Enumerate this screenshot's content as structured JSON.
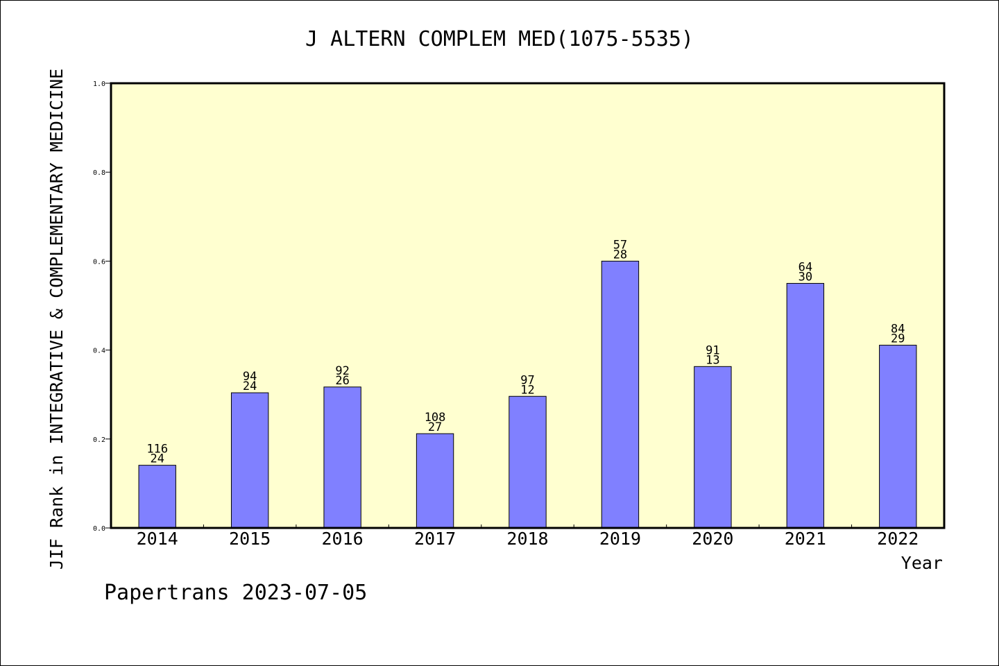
{
  "chart_data": {
    "type": "bar",
    "title": "J ALTERN COMPLEM MED(1075-5535)",
    "xlabel": "Year",
    "ylabel": "JIF Rank in INTEGRATIVE & COMPLEMENTARY MEDICINE",
    "footer": "Papertrans 2023-07-05",
    "ylim": [
      0,
      1.0
    ],
    "yticks": [
      "0.0",
      "0.2",
      "0.4",
      "0.6",
      "0.8",
      "1.0"
    ],
    "categories": [
      "2014",
      "2015",
      "2016",
      "2017",
      "2018",
      "2019",
      "2020",
      "2021",
      "2022"
    ],
    "values": [
      0.141,
      0.304,
      0.317,
      0.212,
      0.296,
      0.6,
      0.363,
      0.55,
      0.411
    ],
    "label_top": [
      "116",
      "94",
      "92",
      "108",
      "97",
      "57",
      "91",
      "64",
      "84"
    ],
    "label_bottom": [
      "24",
      "24",
      "26",
      "27",
      "12",
      "28",
      "13",
      "30",
      "29"
    ],
    "grid": false,
    "colors": {
      "plot_background": "#ffffd0",
      "bar": "#8080ff",
      "bar_edge": "#000000"
    }
  }
}
